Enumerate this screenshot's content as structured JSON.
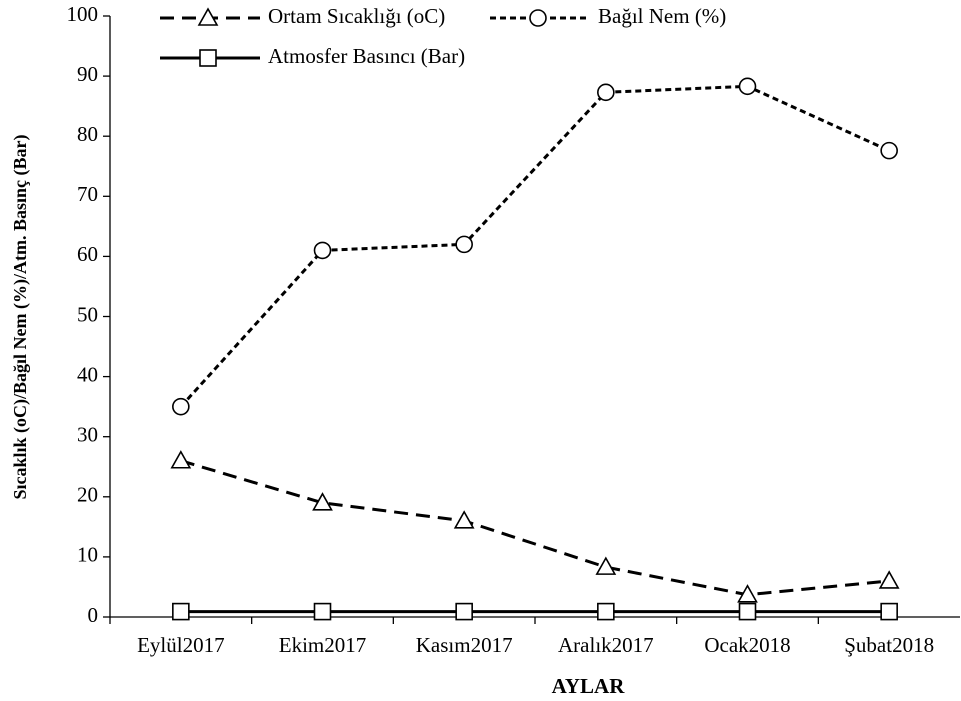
{
  "chart_data": {
    "type": "line",
    "xlabel": "AYLAR",
    "ylabel": "Sıcaklık (oC)/Bağıl Nem (%)/Atm. Basınç (Bar)",
    "categories": [
      "Eylül2017",
      "Ekim2017",
      "Kasım2017",
      "Aralık2017",
      "Ocak2018",
      "Şubat2018"
    ],
    "series": [
      {
        "name": "Ortam Sıcaklığı (oC)",
        "color": "#000000",
        "marker": "triangle",
        "dash": "long",
        "values": [
          26,
          19,
          16,
          8.3,
          3.7,
          6
        ]
      },
      {
        "name": "Bağıl Nem (%)",
        "color": "#000000",
        "marker": "circle",
        "dash": "short",
        "values": [
          35,
          61,
          62,
          87.3,
          88.3,
          77.6
        ]
      },
      {
        "name": "Atmosfer Basıncı (Bar)",
        "color": "#000000",
        "marker": "square",
        "dash": "solid",
        "values": [
          0.9,
          0.9,
          0.9,
          0.9,
          0.9,
          0.9
        ]
      }
    ],
    "ylim": [
      0,
      100
    ],
    "yticks": [
      0,
      10,
      20,
      30,
      40,
      50,
      60,
      70,
      80,
      90,
      100
    ],
    "grid": false
  }
}
